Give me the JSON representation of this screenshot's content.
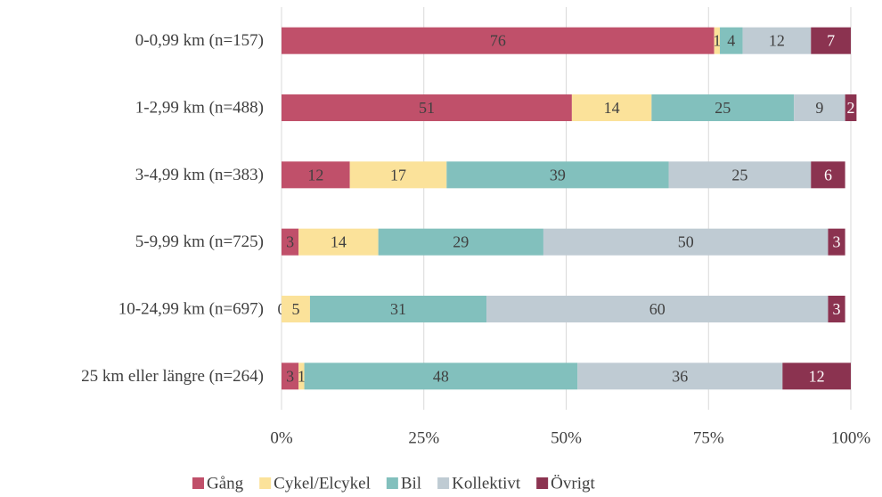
{
  "chart_data": {
    "type": "stacked-bar-horizontal",
    "categories": [
      "0-0,99 km (n=157)",
      "1-2,99 km (n=488)",
      "3-4,99 km (n=383)",
      "5-9,99 km (n=725)",
      "10-24,99 km (n=697)",
      "25 km eller längre (n=264)"
    ],
    "series": [
      {
        "name": "Gång",
        "color": "#c0506a",
        "values": [
          76,
          51,
          12,
          3,
          0,
          3
        ]
      },
      {
        "name": "Cykel/Elcykel",
        "color": "#fbe29a",
        "values": [
          1,
          14,
          17,
          14,
          5,
          1
        ]
      },
      {
        "name": "Bil",
        "color": "#82c0bd",
        "values": [
          4,
          25,
          39,
          29,
          31,
          48
        ]
      },
      {
        "name": "Kollektivt",
        "color": "#bfcbd3",
        "values": [
          12,
          9,
          25,
          50,
          60,
          36
        ]
      },
      {
        "name": "Övrigt",
        "color": "#8b3350",
        "values": [
          7,
          2,
          6,
          3,
          3,
          12
        ]
      }
    ],
    "xlim": [
      0,
      100
    ],
    "xticks": [
      {
        "value": 0,
        "label": "0%"
      },
      {
        "value": 25,
        "label": "25%"
      },
      {
        "value": 50,
        "label": "50%"
      },
      {
        "value": 75,
        "label": "75%"
      },
      {
        "value": 100,
        "label": "100%"
      }
    ],
    "grid": true,
    "legend": "bottom"
  }
}
